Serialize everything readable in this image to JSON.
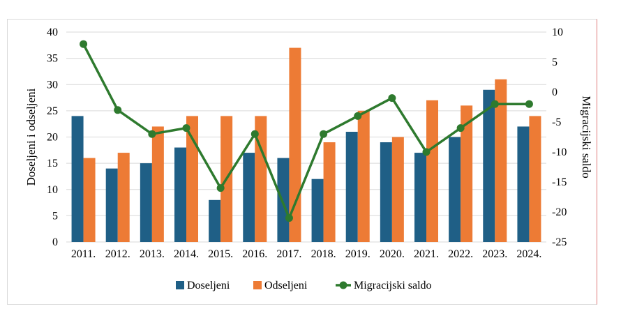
{
  "chart_data": {
    "type": "bar",
    "categories": [
      "2011.",
      "2012.",
      "2013.",
      "2014.",
      "2015.",
      "2016.",
      "2017.",
      "2018.",
      "2019.",
      "2020.",
      "2021.",
      "2022.",
      "2023.",
      "2024."
    ],
    "series": [
      {
        "name": "Doseljeni",
        "type": "bar",
        "axis": "left",
        "color": "#1f5f86",
        "values": [
          24,
          14,
          15,
          18,
          8,
          17,
          16,
          12,
          21,
          19,
          17,
          20,
          29,
          22
        ]
      },
      {
        "name": "Odseljeni",
        "type": "bar",
        "axis": "left",
        "color": "#ed7b35",
        "values": [
          16,
          17,
          22,
          24,
          24,
          24,
          37,
          19,
          25,
          20,
          27,
          26,
          31,
          24
        ]
      },
      {
        "name": "Migracijski saldo",
        "type": "line",
        "axis": "right",
        "color": "#2e7a2e",
        "values": [
          8,
          -3,
          -7,
          -6,
          -16,
          -7,
          -21,
          -7,
          -4,
          -1,
          -10,
          -6,
          -2,
          -2
        ]
      }
    ],
    "ylabel": "Doseljeni i odseljeni",
    "y2label": "Migracijski saldo",
    "ylim": [
      0,
      40
    ],
    "y2lim": [
      -25,
      10
    ],
    "yticks": [
      "0",
      "5",
      "10",
      "15",
      "20",
      "25",
      "30",
      "35",
      "40"
    ],
    "y2ticks": [
      "-25",
      "-20",
      "-15",
      "-10",
      "-5",
      "0",
      "5",
      "10"
    ],
    "grid": true,
    "legend_position": "bottom"
  }
}
